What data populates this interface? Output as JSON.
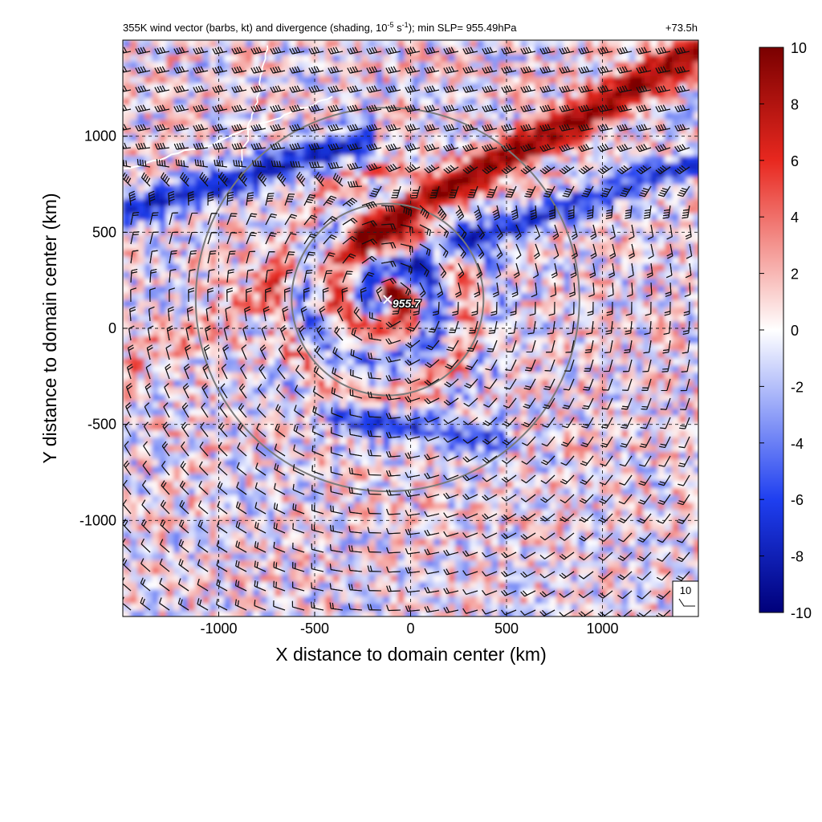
{
  "figure": {
    "title_left": "355K wind vector (barbs, kt) and divergence (shading, 10",
    "title_exp1": "-5",
    "title_mid": " s",
    "title_exp2": "-1",
    "title_tail": "); min SLP= 955.49hPa",
    "title_right": "+73.5h",
    "center_label": "955.7",
    "reference_barb_label": "10"
  },
  "colors": {
    "strong_positive": "#7a0000",
    "positive": "#e8281f",
    "zero": "#ffffff",
    "negative": "#1f3ff0",
    "strong_negative": "#00007a",
    "ring": "#7a7a7a",
    "coastline": "#ffffff"
  },
  "chart_data": {
    "type": "heatmap",
    "field": "divergence",
    "overlay": "wind barbs (kt)",
    "xlabel": "X distance to domain center (km)",
    "ylabel": "Y distance to domain center (km)",
    "xlim": [
      -1500,
      1500
    ],
    "ylim": [
      -1500,
      1500
    ],
    "xticks": [
      -1000,
      -500,
      0,
      500,
      1000
    ],
    "yticks": [
      -1000,
      -500,
      0,
      500,
      1000
    ],
    "grid": true,
    "storm_center": {
      "x": -120,
      "y": 150
    },
    "rings_km": [
      500,
      1000
    ],
    "colorbar": {
      "min": -10,
      "max": 10,
      "ticks": [
        10,
        8,
        6,
        4,
        2,
        0,
        -2,
        -4,
        -6,
        -8,
        -10
      ]
    }
  }
}
